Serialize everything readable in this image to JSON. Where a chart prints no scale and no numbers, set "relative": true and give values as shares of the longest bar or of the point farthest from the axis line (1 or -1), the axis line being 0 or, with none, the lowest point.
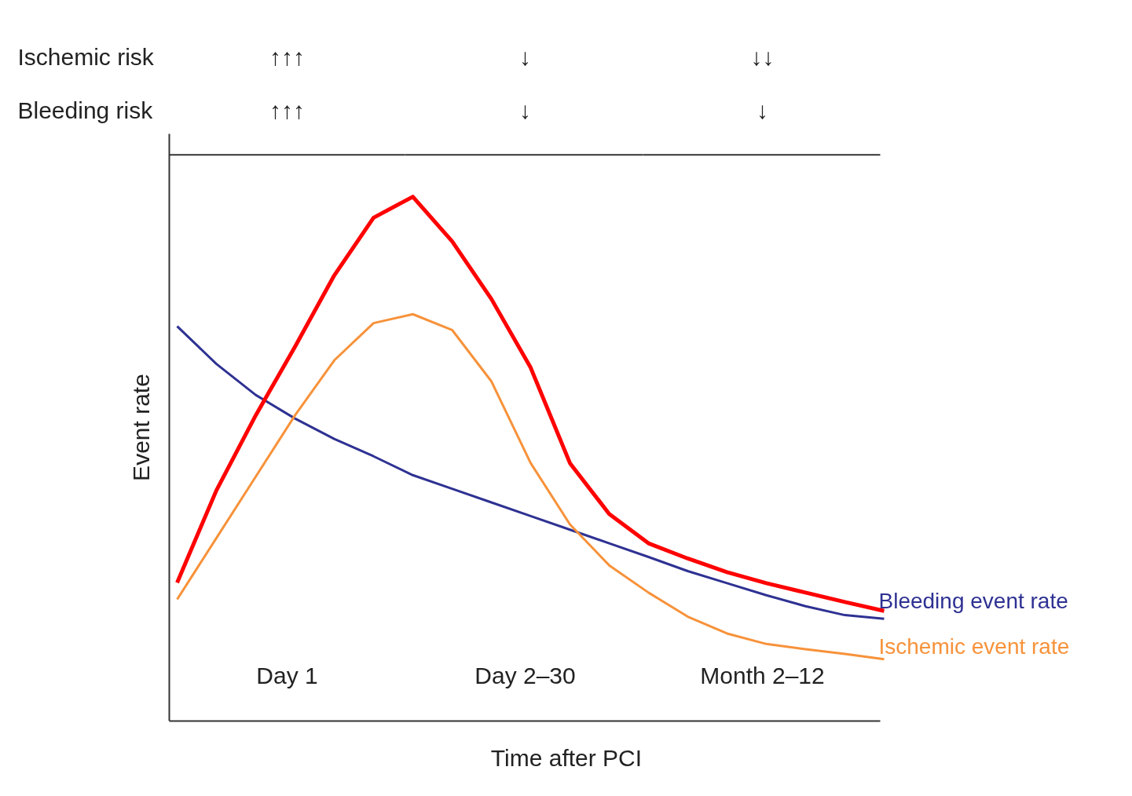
{
  "chart_data": {
    "type": "line",
    "relative": true,
    "xlabel": "Time after PCI",
    "ylabel": "Event rate",
    "legend": false,
    "categories": [
      null,
      null,
      null,
      null,
      null,
      null,
      null,
      null,
      null,
      null,
      null,
      null,
      null,
      null,
      null,
      null,
      null,
      null,
      null
    ],
    "series": [
      {
        "name": "Bleeding event rate",
        "color": "#2e3192",
        "values": [
          0.753,
          0.681,
          0.622,
          0.577,
          0.538,
          0.505,
          0.469,
          0.443,
          0.417,
          0.391,
          0.365,
          0.339,
          0.313,
          0.286,
          0.263,
          0.24,
          0.219,
          0.202,
          0.195
        ]
      },
      {
        "name": "Ischemic event rate",
        "color": "#f7923a",
        "values": [
          0.232,
          0.349,
          0.466,
          0.583,
          0.688,
          0.759,
          0.776,
          0.746,
          0.648,
          0.492,
          0.375,
          0.297,
          0.245,
          0.199,
          0.167,
          0.147,
          0.137,
          0.128,
          0.118
        ]
      },
      {
        "color": "#ff0000",
        "values": [
          0.264,
          0.44,
          0.583,
          0.714,
          0.85,
          0.96,
          1.0,
          0.915,
          0.805,
          0.674,
          0.492,
          0.395,
          0.339,
          0.31,
          0.284,
          0.263,
          0.245,
          0.227,
          0.21
        ]
      }
    ],
    "annotations": [
      "Ischemic risk",
      "↑↑↑",
      "↓",
      "↓↓",
      "Bleeding risk",
      "↑↑↑",
      "↓",
      "↓",
      "Day 1",
      "Day 2–30",
      "Month 2–12"
    ]
  }
}
